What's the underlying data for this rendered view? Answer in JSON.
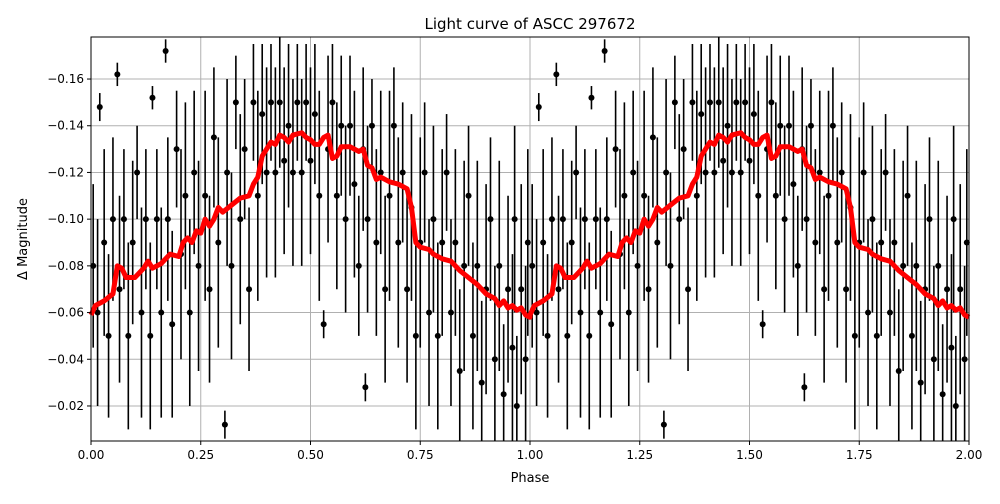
{
  "chart_data": {
    "type": "scatter",
    "title": "Light curve of ASCC 297672",
    "xlabel": "Phase",
    "ylabel": "Δ Magnitude",
    "xlim": [
      0,
      2
    ],
    "ylim": [
      -0.005,
      -0.178
    ],
    "y_inverted": true,
    "grid": true,
    "x_ticks": [
      "0.00",
      "0.25",
      "0.50",
      "0.75",
      "1.00",
      "1.25",
      "1.50",
      "1.75",
      "2.00"
    ],
    "x_tick_values": [
      0,
      0.25,
      0.5,
      0.75,
      1,
      1.25,
      1.5,
      1.75,
      2
    ],
    "y_ticks": [
      "−0.16",
      "−0.14",
      "−0.12",
      "−0.10",
      "−0.08",
      "−0.06",
      "−0.04",
      "−0.02"
    ],
    "y_tick_values": [
      -0.16,
      -0.14,
      -0.12,
      -0.1,
      -0.08,
      -0.06,
      -0.04,
      -0.02
    ],
    "colors": {
      "points": "#000000",
      "model": "#ff0000",
      "grid": "#b0b0b0"
    },
    "points_note_repeat_period": 1,
    "points": [
      [
        0.005,
        -0.08,
        0.035
      ],
      [
        0.015,
        -0.06,
        0.04
      ],
      [
        0.02,
        -0.148,
        0.006
      ],
      [
        0.03,
        -0.09,
        0.04
      ],
      [
        0.04,
        -0.05,
        0.035
      ],
      [
        0.05,
        -0.1,
        0.035
      ],
      [
        0.06,
        -0.162,
        0.005
      ],
      [
        0.065,
        -0.07,
        0.04
      ],
      [
        0.075,
        -0.1,
        0.03
      ],
      [
        0.085,
        -0.05,
        0.04
      ],
      [
        0.095,
        -0.09,
        0.035
      ],
      [
        0.105,
        -0.12,
        0.02
      ],
      [
        0.115,
        -0.06,
        0.045
      ],
      [
        0.125,
        -0.1,
        0.03
      ],
      [
        0.135,
        -0.05,
        0.04
      ],
      [
        0.14,
        -0.152,
        0.005
      ],
      [
        0.15,
        -0.1,
        0.03
      ],
      [
        0.16,
        -0.06,
        0.045
      ],
      [
        0.17,
        -0.172,
        0.005
      ],
      [
        0.175,
        -0.1,
        0.035
      ],
      [
        0.185,
        -0.055,
        0.04
      ],
      [
        0.195,
        -0.13,
        0.025
      ],
      [
        0.205,
        -0.085,
        0.045
      ],
      [
        0.215,
        -0.11,
        0.04
      ],
      [
        0.225,
        -0.06,
        0.04
      ],
      [
        0.235,
        -0.12,
        0.035
      ],
      [
        0.245,
        -0.08,
        0.045
      ],
      [
        0.26,
        -0.11,
        0.045
      ],
      [
        0.27,
        -0.07,
        0.04
      ],
      [
        0.28,
        -0.135,
        0.03
      ],
      [
        0.29,
        -0.09,
        0.045
      ],
      [
        0.305,
        -0.012,
        0.006
      ],
      [
        0.31,
        -0.12,
        0.04
      ],
      [
        0.32,
        -0.08,
        0.04
      ],
      [
        0.33,
        -0.15,
        0.02
      ],
      [
        0.34,
        -0.1,
        0.045
      ],
      [
        0.35,
        -0.13,
        0.03
      ],
      [
        0.36,
        -0.07,
        0.035
      ],
      [
        0.37,
        -0.15,
        0.025
      ],
      [
        0.38,
        -0.11,
        0.045
      ],
      [
        0.39,
        -0.145,
        0.03
      ],
      [
        0.4,
        -0.12,
        0.045
      ],
      [
        0.41,
        -0.15,
        0.025
      ],
      [
        0.42,
        -0.12,
        0.045
      ],
      [
        0.43,
        -0.15,
        0.028
      ],
      [
        0.44,
        -0.125,
        0.04
      ],
      [
        0.45,
        -0.14,
        0.035
      ],
      [
        0.46,
        -0.12,
        0.04
      ],
      [
        0.47,
        -0.15,
        0.025
      ],
      [
        0.48,
        -0.12,
        0.04
      ],
      [
        0.49,
        -0.15,
        0.025
      ],
      [
        0.5,
        -0.125,
        0.04
      ],
      [
        0.51,
        -0.145,
        0.03
      ],
      [
        0.52,
        -0.11,
        0.045
      ],
      [
        0.53,
        -0.055,
        0.006
      ],
      [
        0.54,
        -0.13,
        0.04
      ],
      [
        0.55,
        -0.15,
        0.025
      ],
      [
        0.56,
        -0.11,
        0.04
      ],
      [
        0.57,
        -0.14,
        0.03
      ],
      [
        0.58,
        -0.1,
        0.04
      ],
      [
        0.59,
        -0.14,
        0.03
      ],
      [
        0.6,
        -0.115,
        0.04
      ],
      [
        0.61,
        -0.08,
        0.03
      ],
      [
        0.62,
        -0.13,
        0.035
      ],
      [
        0.625,
        -0.028,
        0.006
      ],
      [
        0.63,
        -0.1,
        0.04
      ],
      [
        0.64,
        -0.14,
        0.02
      ],
      [
        0.65,
        -0.09,
        0.04
      ],
      [
        0.66,
        -0.12,
        0.035
      ],
      [
        0.67,
        -0.07,
        0.04
      ],
      [
        0.68,
        -0.11,
        0.045
      ],
      [
        0.69,
        -0.14,
        0.025
      ],
      [
        0.7,
        -0.09,
        0.045
      ],
      [
        0.71,
        -0.12,
        0.03
      ],
      [
        0.72,
        -0.07,
        0.04
      ],
      [
        0.73,
        -0.105,
        0.04
      ],
      [
        0.74,
        -0.05,
        0.04
      ],
      [
        0.75,
        -0.09,
        0.045
      ],
      [
        0.76,
        -0.12,
        0.03
      ],
      [
        0.77,
        -0.06,
        0.04
      ],
      [
        0.78,
        -0.1,
        0.04
      ],
      [
        0.79,
        -0.05,
        0.04
      ],
      [
        0.8,
        -0.09,
        0.04
      ],
      [
        0.81,
        -0.12,
        0.025
      ],
      [
        0.82,
        -0.06,
        0.04
      ],
      [
        0.83,
        -0.09,
        0.04
      ],
      [
        0.84,
        -0.035,
        0.035
      ],
      [
        0.85,
        -0.08,
        0.045
      ],
      [
        0.86,
        -0.11,
        0.03
      ],
      [
        0.87,
        -0.05,
        0.04
      ],
      [
        0.88,
        -0.08,
        0.045
      ],
      [
        0.89,
        -0.03,
        0.035
      ],
      [
        0.9,
        -0.07,
        0.045
      ],
      [
        0.91,
        -0.1,
        0.035
      ],
      [
        0.92,
        -0.04,
        0.04
      ],
      [
        0.93,
        -0.08,
        0.045
      ],
      [
        0.94,
        -0.025,
        0.03
      ],
      [
        0.95,
        -0.07,
        0.04
      ],
      [
        0.96,
        -0.045,
        0.04
      ],
      [
        0.965,
        -0.1,
        0.04
      ],
      [
        0.97,
        -0.02,
        0.03
      ],
      [
        0.98,
        -0.07,
        0.045
      ],
      [
        0.99,
        -0.04,
        0.04
      ],
      [
        0.995,
        -0.09,
        0.04
      ]
    ],
    "series": [
      {
        "values": [
          [
            0.0,
            -0.059
          ],
          [
            0.01,
            -0.063
          ],
          [
            0.03,
            -0.065
          ],
          [
            0.05,
            -0.068
          ],
          [
            0.06,
            -0.08
          ],
          [
            0.07,
            -0.079
          ],
          [
            0.08,
            -0.075
          ],
          [
            0.1,
            -0.075
          ],
          [
            0.12,
            -0.079
          ],
          [
            0.13,
            -0.082
          ],
          [
            0.14,
            -0.079
          ],
          [
            0.16,
            -0.081
          ],
          [
            0.18,
            -0.085
          ],
          [
            0.2,
            -0.084
          ],
          [
            0.21,
            -0.09
          ],
          [
            0.22,
            -0.092
          ],
          [
            0.23,
            -0.09
          ],
          [
            0.24,
            -0.095
          ],
          [
            0.25,
            -0.094
          ],
          [
            0.26,
            -0.1
          ],
          [
            0.27,
            -0.097
          ],
          [
            0.28,
            -0.1
          ],
          [
            0.29,
            -0.105
          ],
          [
            0.3,
            -0.103
          ],
          [
            0.32,
            -0.106
          ],
          [
            0.34,
            -0.109
          ],
          [
            0.36,
            -0.11
          ],
          [
            0.37,
            -0.115
          ],
          [
            0.38,
            -0.118
          ],
          [
            0.39,
            -0.127
          ],
          [
            0.4,
            -0.13
          ],
          [
            0.41,
            -0.133
          ],
          [
            0.42,
            -0.132
          ],
          [
            0.43,
            -0.136
          ],
          [
            0.44,
            -0.135
          ],
          [
            0.45,
            -0.133
          ],
          [
            0.46,
            -0.136
          ],
          [
            0.48,
            -0.137
          ],
          [
            0.49,
            -0.135
          ],
          [
            0.5,
            -0.134
          ],
          [
            0.51,
            -0.132
          ],
          [
            0.52,
            -0.132
          ],
          [
            0.53,
            -0.135
          ],
          [
            0.54,
            -0.136
          ],
          [
            0.55,
            -0.126
          ],
          [
            0.56,
            -0.127
          ],
          [
            0.57,
            -0.131
          ],
          [
            0.59,
            -0.131
          ],
          [
            0.61,
            -0.129
          ],
          [
            0.62,
            -0.13
          ],
          [
            0.63,
            -0.123
          ],
          [
            0.64,
            -0.122
          ],
          [
            0.65,
            -0.117
          ],
          [
            0.66,
            -0.118
          ],
          [
            0.68,
            -0.116
          ],
          [
            0.7,
            -0.115
          ],
          [
            0.72,
            -0.113
          ],
          [
            0.73,
            -0.105
          ],
          [
            0.74,
            -0.09
          ],
          [
            0.75,
            -0.088
          ],
          [
            0.77,
            -0.087
          ],
          [
            0.78,
            -0.085
          ],
          [
            0.8,
            -0.083
          ],
          [
            0.82,
            -0.082
          ],
          [
            0.84,
            -0.078
          ],
          [
            0.86,
            -0.075
          ],
          [
            0.88,
            -0.072
          ],
          [
            0.9,
            -0.068
          ],
          [
            0.92,
            -0.066
          ],
          [
            0.93,
            -0.063
          ],
          [
            0.94,
            -0.065
          ],
          [
            0.95,
            -0.062
          ],
          [
            0.96,
            -0.063
          ],
          [
            0.97,
            -0.061
          ],
          [
            0.98,
            -0.062
          ],
          [
            0.99,
            -0.059
          ],
          [
            1.0,
            -0.058
          ]
        ]
      }
    ]
  }
}
